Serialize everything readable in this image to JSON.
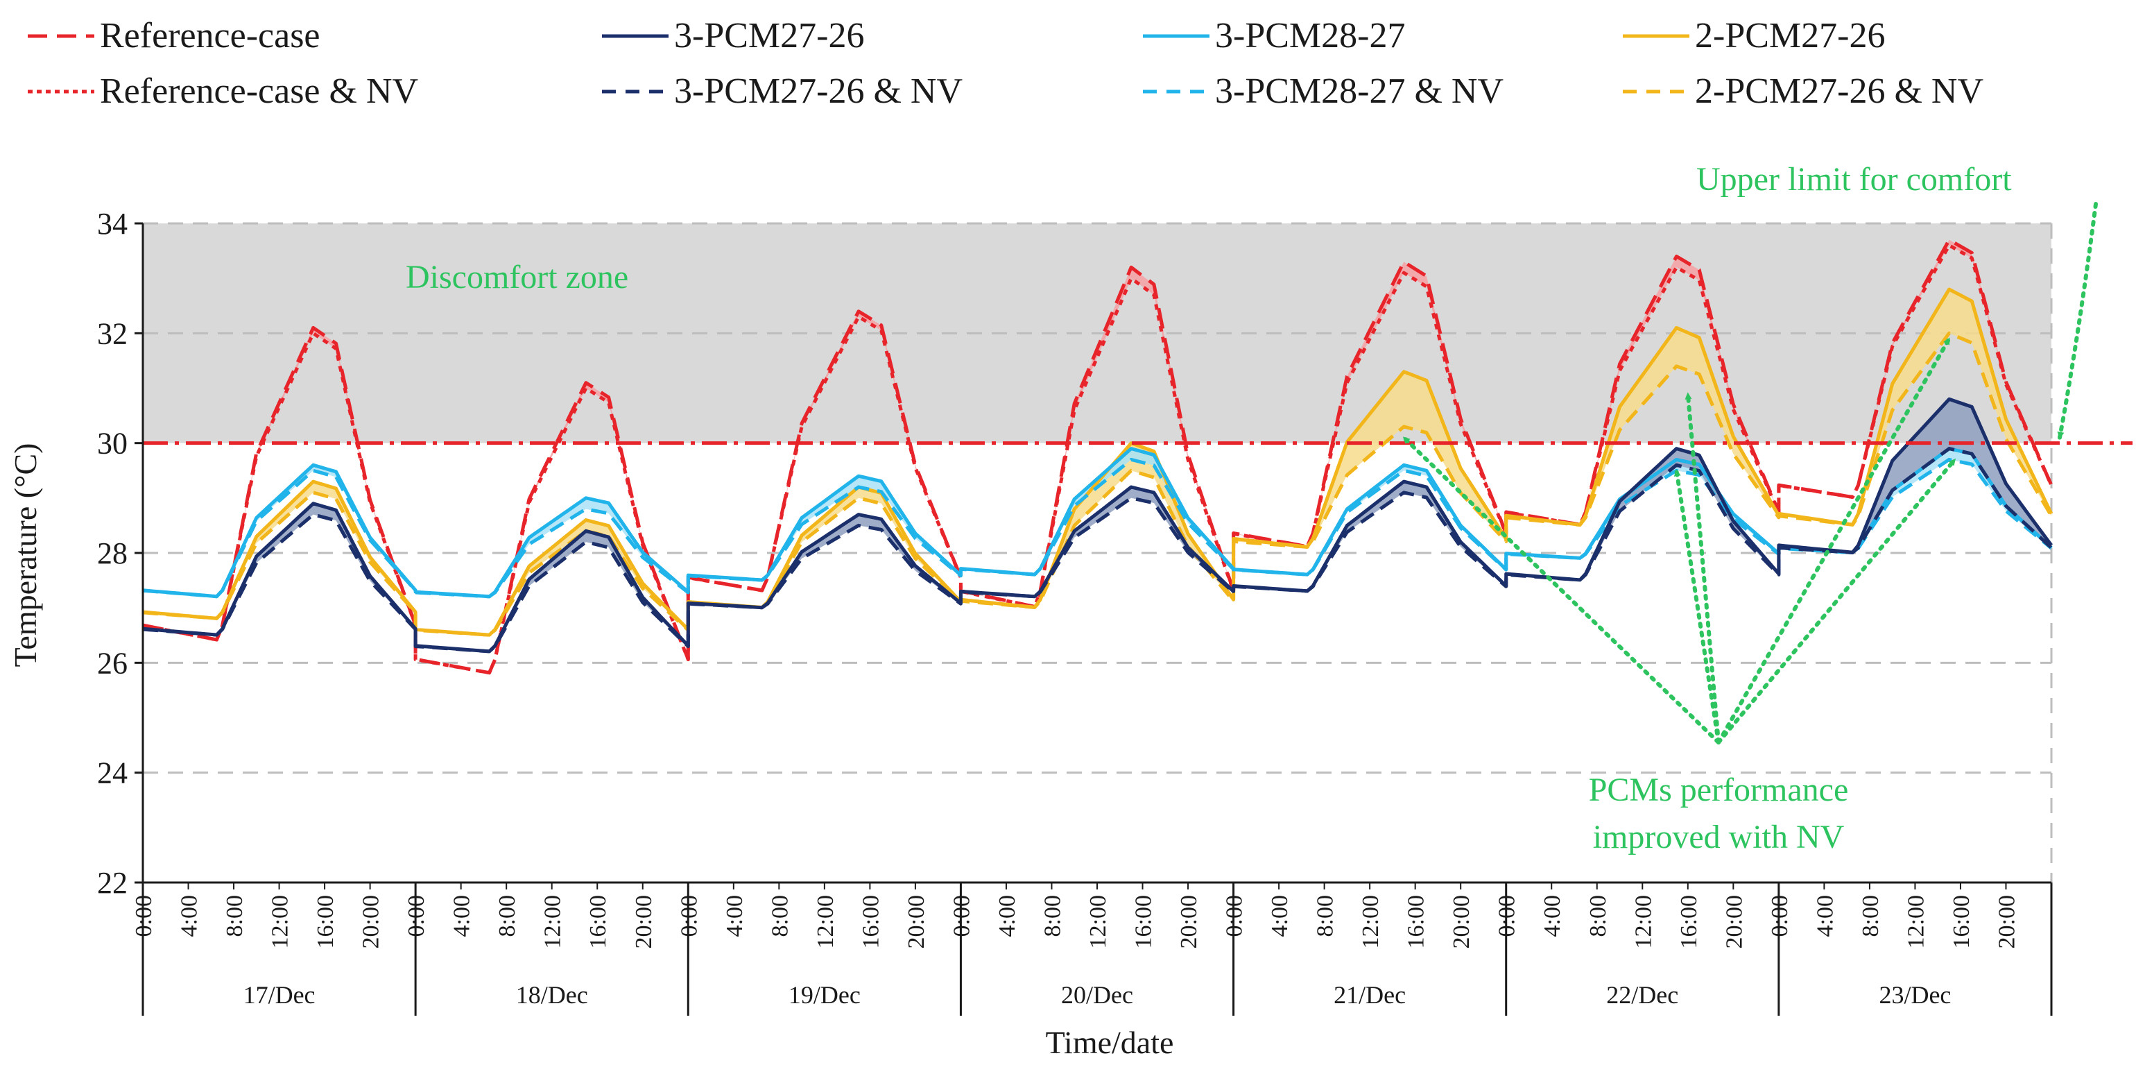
{
  "chart_data": {
    "type": "line",
    "xlabel": "Time/date",
    "ylabel": "Temperature (°C)",
    "ylim": [
      22,
      34
    ],
    "yticks": [
      22,
      24,
      26,
      28,
      30,
      32,
      34
    ],
    "days": [
      "17/Dec",
      "18/Dec",
      "19/Dec",
      "20/Dec",
      "21/Dec",
      "22/Dec",
      "23/Dec"
    ],
    "hour_ticks": [
      "0:00",
      "4:00",
      "8:00",
      "12:00",
      "16:00",
      "20:00"
    ],
    "comfort_upper_limit": 30,
    "discomfort_zone": [
      30,
      34
    ],
    "colors": {
      "reference": "#e8242b",
      "pcm_3_27_26": "#1b2f6b",
      "pcm_3_28_27": "#20b4ea",
      "pcm_2_27_26": "#f2b61b",
      "annotation": "#2dc45f",
      "zone": "#d9d9d9"
    },
    "legend": [
      {
        "label": "Reference-case",
        "color": "#e8242b",
        "style": "long-dash"
      },
      {
        "label": "Reference-case & NV",
        "color": "#e8242b",
        "style": "dotted"
      },
      {
        "label": "3-PCM27-26",
        "color": "#1b2f6b",
        "style": "solid"
      },
      {
        "label": "3-PCM27-26 & NV",
        "color": "#1b2f6b",
        "style": "dash"
      },
      {
        "label": "3-PCM28-27",
        "color": "#20b4ea",
        "style": "solid"
      },
      {
        "label": "3-PCM28-27 & NV",
        "color": "#20b4ea",
        "style": "dash"
      },
      {
        "label": "2-PCM27-26",
        "color": "#f2b61b",
        "style": "solid"
      },
      {
        "label": "2-PCM27-26 & NV",
        "color": "#f2b61b",
        "style": "dash"
      }
    ],
    "daily_profiles": {
      "reference": {
        "min": [
          26.4,
          25.8,
          27.3,
          27.0,
          28.1,
          28.5,
          29.0
        ],
        "max": [
          32.1,
          31.1,
          32.4,
          33.2,
          33.3,
          33.4,
          33.7
        ],
        "nv_max": [
          32.0,
          31.0,
          32.3,
          33.0,
          33.1,
          33.2,
          33.6
        ]
      },
      "pcm_3_27_26": {
        "min": [
          26.5,
          26.2,
          27.0,
          27.2,
          27.3,
          27.5,
          28.0
        ],
        "max": [
          28.9,
          28.4,
          28.7,
          29.2,
          29.3,
          29.9,
          30.8
        ],
        "nv_max": [
          28.7,
          28.2,
          28.5,
          29.0,
          29.1,
          29.6,
          29.9
        ]
      },
      "pcm_3_28_27": {
        "min": [
          27.2,
          27.2,
          27.5,
          27.6,
          27.6,
          27.9,
          28.0
        ],
        "max": [
          29.6,
          29.0,
          29.4,
          29.9,
          29.6,
          29.7,
          29.9
        ],
        "nv_max": [
          29.5,
          28.8,
          29.2,
          29.7,
          29.5,
          29.5,
          29.7
        ]
      },
      "pcm_2_27_26": {
        "min": [
          26.8,
          26.5,
          27.0,
          27.0,
          28.1,
          28.5,
          28.5
        ],
        "max": [
          29.3,
          28.6,
          29.2,
          30.0,
          31.3,
          32.1,
          32.8
        ],
        "nv_max": [
          29.1,
          28.4,
          29.0,
          29.5,
          30.3,
          31.4,
          32.0
        ]
      }
    },
    "annotations": {
      "discomfort_zone": "Discomfort zone",
      "upper_limit": "Upper limit for comfort",
      "pcm_improved_line1": "PCMs performance",
      "pcm_improved_line2": "improved with NV"
    }
  }
}
